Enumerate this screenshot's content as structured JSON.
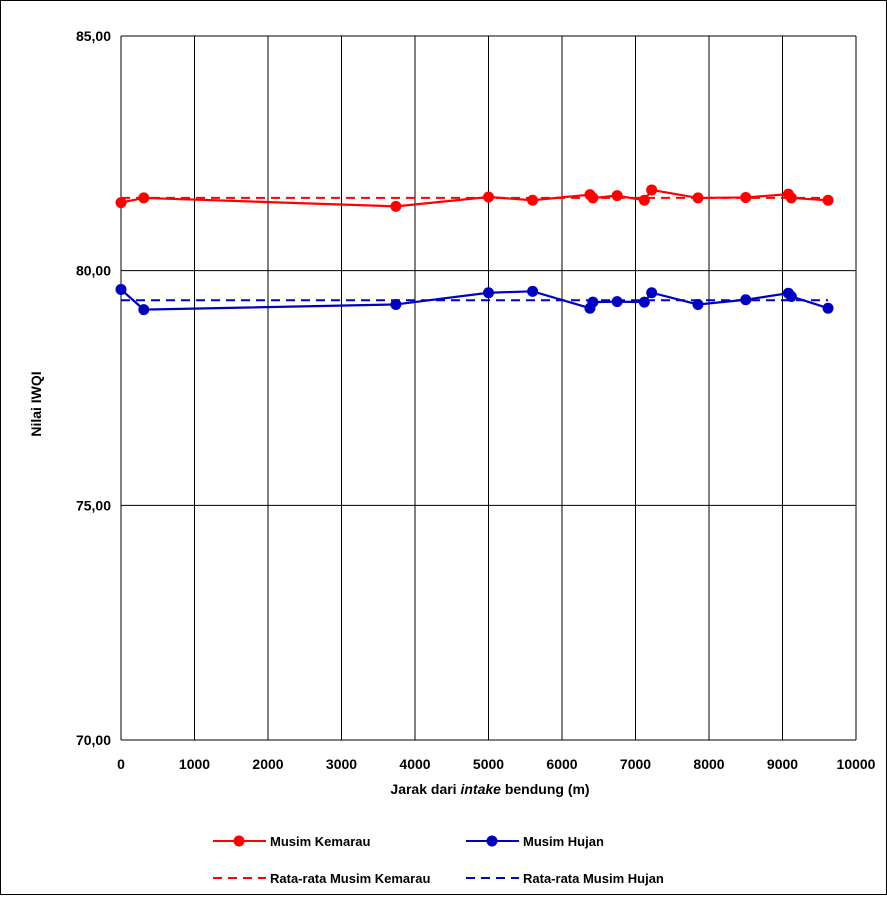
{
  "chart_data": {
    "type": "line",
    "title": "",
    "xlabel_parts": [
      "Jarak dari ",
      "intake",
      " bendung (m)"
    ],
    "ylabel": "Nilai IWQI",
    "xlim": [
      0,
      10000
    ],
    "ylim": [
      70,
      85
    ],
    "x_ticks": [
      "0",
      "1000",
      "2000",
      "3000",
      "4000",
      "5000",
      "6000",
      "7000",
      "8000",
      "9000",
      "10000"
    ],
    "y_ticks": [
      {
        "value": 85,
        "label": "85,00"
      },
      {
        "value": 80,
        "label": "80,00"
      },
      {
        "value": 75,
        "label": "75,00"
      },
      {
        "value": 70,
        "label": "70,00"
      }
    ],
    "grid": "vertical lines at every x tick, horizontal lines at y ticks",
    "legend_position": "bottom",
    "series": [
      {
        "name": "Musim Kemarau",
        "color": "#ff0000",
        "style": "solid-marker",
        "points": [
          [
            0,
            81.45
          ],
          [
            310,
            81.55
          ],
          [
            3740,
            81.37
          ],
          [
            5000,
            81.57
          ],
          [
            5600,
            81.5
          ],
          [
            6380,
            81.62
          ],
          [
            6420,
            81.55
          ],
          [
            6750,
            81.6
          ],
          [
            7120,
            81.5
          ],
          [
            7220,
            81.72
          ],
          [
            7850,
            81.55
          ],
          [
            8500,
            81.56
          ],
          [
            9080,
            81.63
          ],
          [
            9120,
            81.55
          ],
          [
            9620,
            81.5
          ]
        ]
      },
      {
        "name": "Musim Hujan",
        "color": "#0000c0",
        "style": "solid-marker",
        "points": [
          [
            0,
            79.6
          ],
          [
            310,
            79.17
          ],
          [
            3740,
            79.28
          ],
          [
            5000,
            79.53
          ],
          [
            5600,
            79.56
          ],
          [
            6380,
            79.2
          ],
          [
            6420,
            79.33
          ],
          [
            6750,
            79.34
          ],
          [
            7120,
            79.33
          ],
          [
            7220,
            79.53
          ],
          [
            7850,
            79.28
          ],
          [
            8500,
            79.38
          ],
          [
            9080,
            79.52
          ],
          [
            9120,
            79.45
          ],
          [
            9620,
            79.2
          ]
        ]
      },
      {
        "name": "Rata-rata Musim Kemarau",
        "color": "#ff0000",
        "style": "dashed",
        "points": [
          [
            0,
            81.55
          ],
          [
            9620,
            81.55
          ]
        ]
      },
      {
        "name": "Rata-rata Musim Hujan",
        "color": "#0000c0",
        "style": "dashed",
        "points": [
          [
            0,
            79.37
          ],
          [
            9620,
            79.37
          ]
        ]
      }
    ]
  }
}
